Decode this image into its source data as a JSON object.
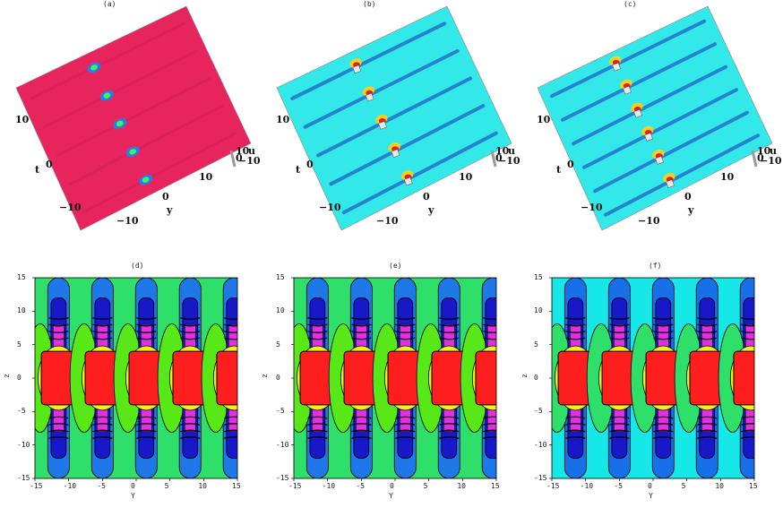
{
  "chart_data": [
    {
      "type": "surface",
      "panel_label": "(a)",
      "axis_labels": {
        "t": "t",
        "y": "y",
        "u": "u"
      },
      "t_ticks": [
        "10",
        "0",
        "−10"
      ],
      "y_ticks": [
        "−10",
        "0",
        "10"
      ],
      "u_ticks": [
        "10",
        "0",
        "−10"
      ],
      "base_color": "#e8245e",
      "peaks": 5
    },
    {
      "type": "surface",
      "panel_label": "(b)",
      "axis_labels": {
        "t": "t",
        "y": "y",
        "u": "u"
      },
      "t_ticks": [
        "10",
        "0",
        "−10"
      ],
      "y_ticks": [
        "−10",
        "0",
        "10"
      ],
      "u_ticks": [
        "10",
        "0",
        "−10"
      ],
      "base_color": "#33e8e8",
      "peaks": 5
    },
    {
      "type": "surface",
      "panel_label": "(c)",
      "axis_labels": {
        "t": "t",
        "y": "y",
        "u": "u"
      },
      "t_ticks": [
        "10",
        "0",
        "−10"
      ],
      "y_ticks": [
        "−10",
        "0",
        "10"
      ],
      "u_ticks": [
        "10",
        "0",
        "−10"
      ],
      "base_color": "#33e8e8",
      "peaks": 6
    },
    {
      "type": "heatmap",
      "panel_label": "(d)",
      "xlabel": "Y",
      "ylabel": "z",
      "xlim": [
        -15,
        15
      ],
      "ylim": [
        -15,
        15
      ],
      "x_ticks": [
        "-15",
        "-10",
        "-5",
        "0",
        "5",
        "10",
        "15"
      ],
      "y_ticks": [
        "15",
        "10",
        "5",
        "0",
        "-5",
        "-10",
        "-15"
      ],
      "background_color": "#2ee06a",
      "column_centers": [
        -11.5,
        -5,
        1.5,
        8,
        14.5
      ]
    },
    {
      "type": "heatmap",
      "panel_label": "(e)",
      "xlabel": "Y",
      "ylabel": "z",
      "xlim": [
        -15,
        15
      ],
      "ylim": [
        -15,
        15
      ],
      "x_ticks": [
        "-15",
        "-10",
        "-5",
        "0",
        "5",
        "10",
        "15"
      ],
      "y_ticks": [
        "15",
        "10",
        "5",
        "0",
        "-5",
        "-10",
        "-15"
      ],
      "background_color": "#2ee06a",
      "column_centers": [
        -11.5,
        -5,
        1.5,
        8,
        14.5
      ]
    },
    {
      "type": "heatmap",
      "panel_label": "(f)",
      "xlabel": "Y",
      "ylabel": "z",
      "xlim": [
        -15,
        15
      ],
      "ylim": [
        -15,
        15
      ],
      "x_ticks": [
        "-15",
        "-10",
        "-5",
        "0",
        "5",
        "10",
        "15"
      ],
      "y_ticks": [
        "15",
        "10",
        "5",
        "0",
        "-5",
        "-10",
        "-15"
      ],
      "background_color": "#16e8e8",
      "column_centers": [
        -11.5,
        -5,
        1.5,
        8,
        14.5
      ]
    }
  ],
  "colors": {
    "red": "#ff1e1e",
    "blue": "#1e78e8",
    "navy": "#1818c8",
    "magenta": "#e030e0",
    "yellow": "#f0f020",
    "lime": "#58e818",
    "green": "#2ee06a",
    "cyan": "#16e8e8"
  }
}
